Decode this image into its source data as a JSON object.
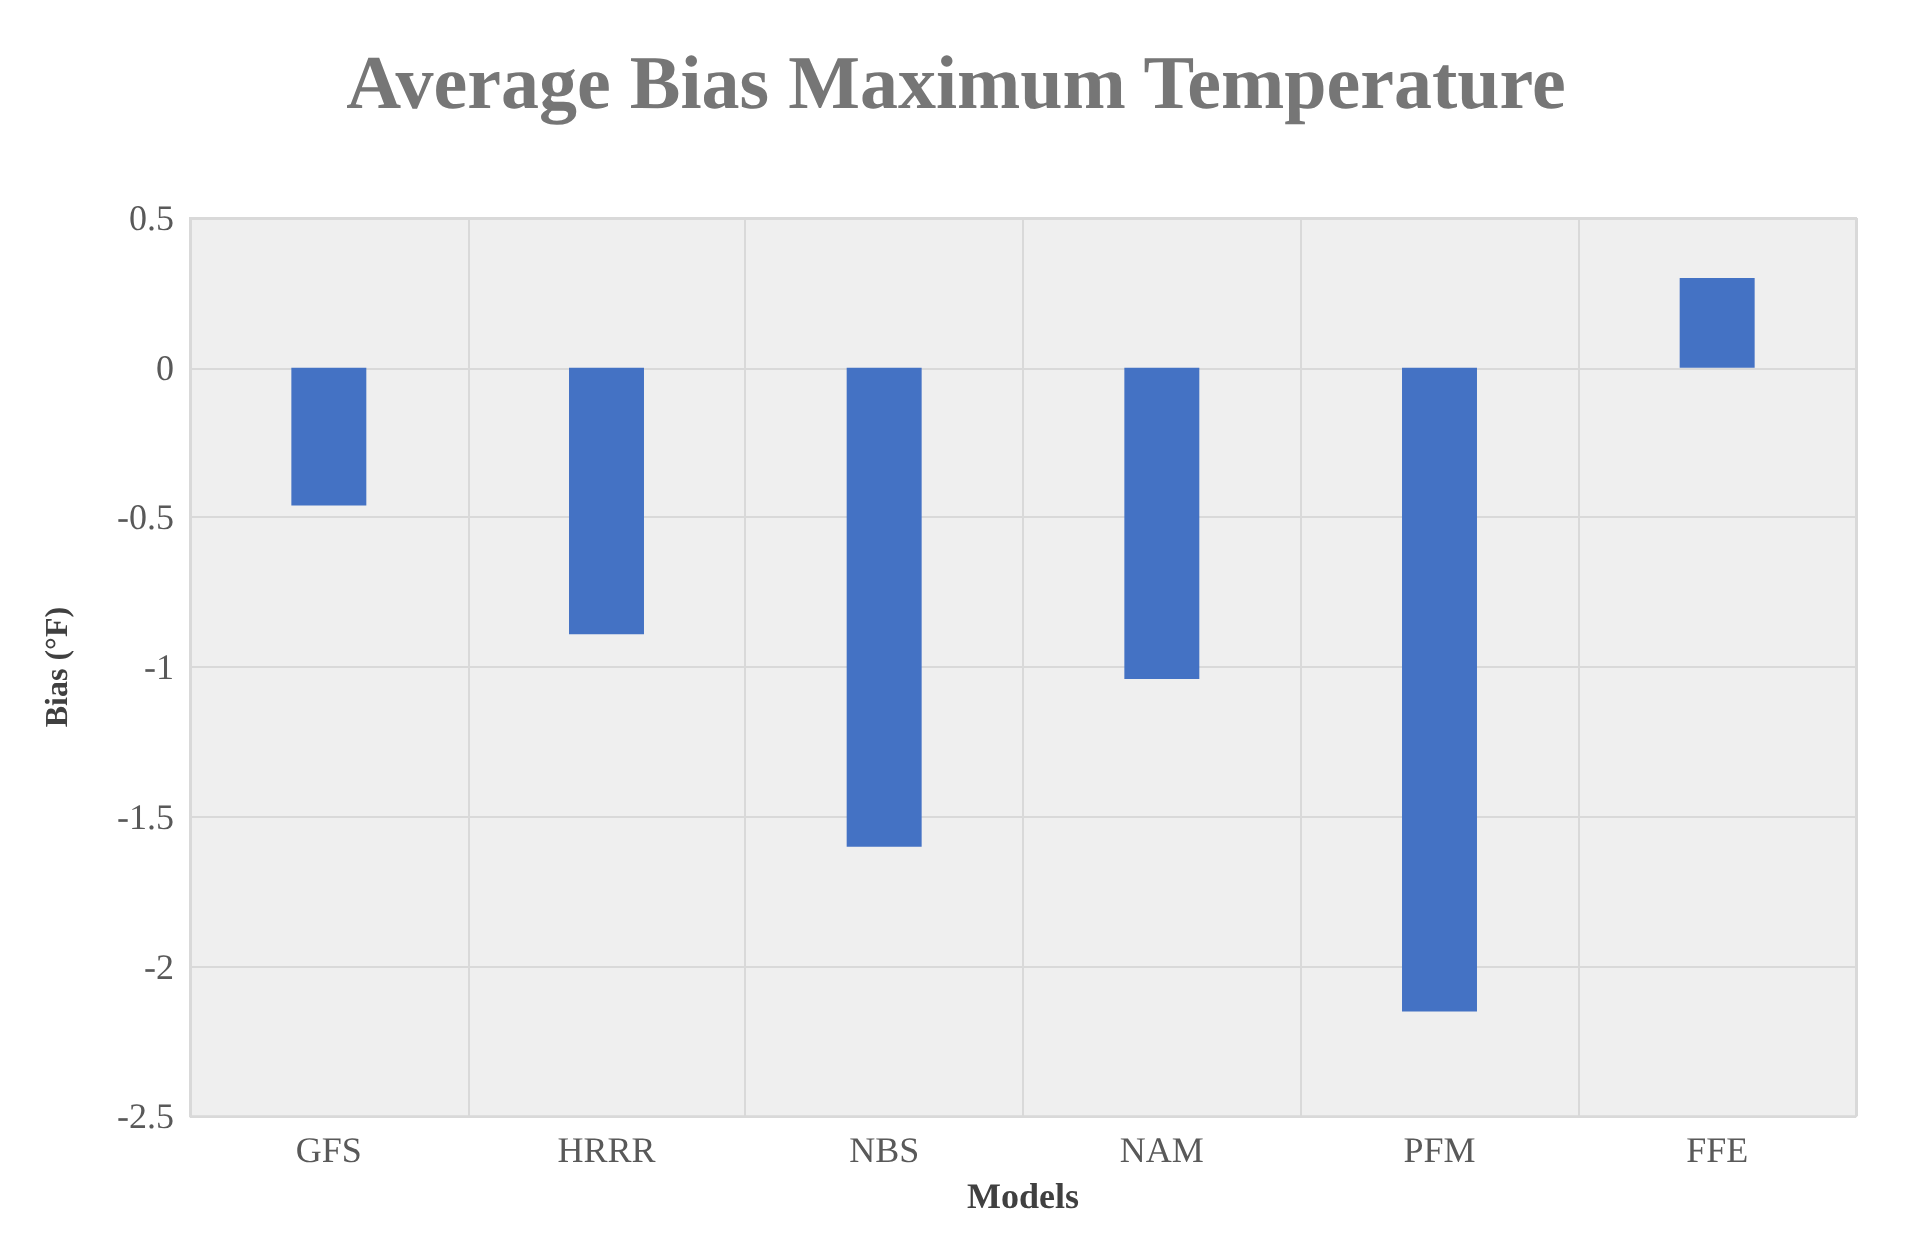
{
  "chart_data": {
    "type": "bar",
    "title": "Average Bias Maximum Temperature",
    "xlabel": "Models",
    "ylabel": "Bias (°F)",
    "categories": [
      "GFS",
      "HRRR",
      "NBS",
      "NAM",
      "PFM",
      "FFE"
    ],
    "values": [
      -0.46,
      -0.89,
      -1.6,
      -1.04,
      -2.15,
      0.3
    ],
    "color": "#4472c4",
    "ylim": [
      -2.5,
      0.5
    ],
    "yticks": [
      -2.5,
      -2,
      -1.5,
      -1,
      -0.5,
      0,
      0.5
    ],
    "grid": true
  }
}
